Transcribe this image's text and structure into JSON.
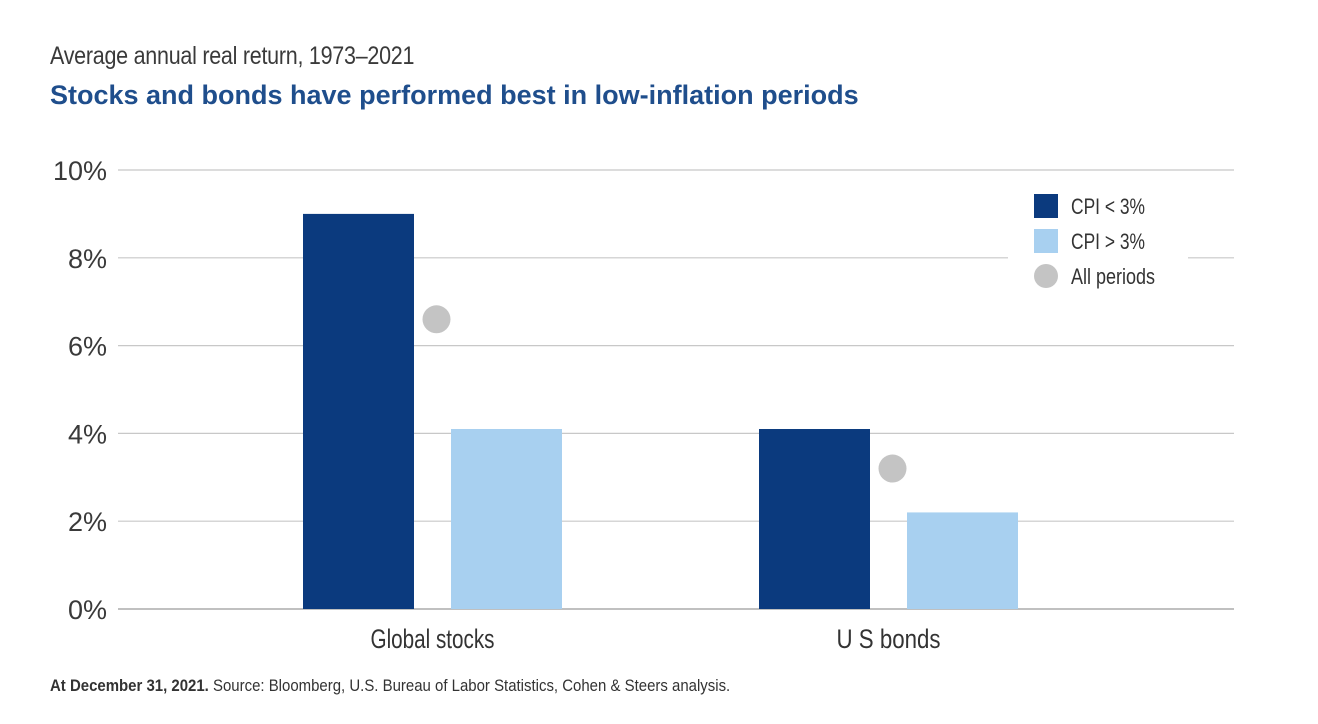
{
  "chart_data": {
    "type": "bar",
    "title": "Average annual real return, 1973–2021",
    "subtitle": "Stocks and bonds have performed best in low-inflation periods",
    "categories": [
      "Global stocks",
      "U S bonds"
    ],
    "series": [
      {
        "name": "CPI < 3%",
        "values": [
          9.0,
          4.1
        ],
        "color": "#0b3a7e",
        "kind": "bar"
      },
      {
        "name": "CPI > 3%",
        "values": [
          4.1,
          2.2
        ],
        "color": "#a8d0f0",
        "kind": "bar"
      },
      {
        "name": "All periods",
        "values": [
          6.6,
          3.2
        ],
        "color": "#c4c4c4",
        "kind": "marker"
      }
    ],
    "y_unit": "%",
    "ylim": [
      0,
      10
    ],
    "y_ticks": [
      0,
      2,
      4,
      6,
      8,
      10
    ],
    "y_tick_labels": [
      "0%",
      "2%",
      "4%",
      "6%",
      "8%",
      "10%"
    ],
    "grid": true,
    "legend_position": "top-right"
  },
  "footnote": {
    "bold": "At December 31, 2021.",
    "text": " Source: Bloomberg, U.S. Bureau of Labor Statistics, Cohen & Steers analysis."
  }
}
